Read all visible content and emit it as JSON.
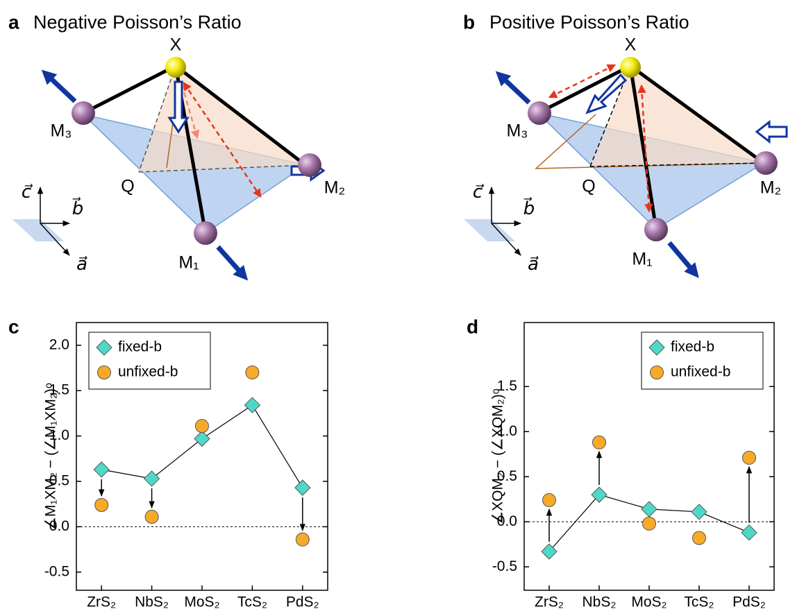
{
  "panels": [
    {
      "letter": "a",
      "title": "Negative Poisson’s Ratio",
      "atoms": [
        "X",
        "M₃",
        "M₂",
        "M₁"
      ],
      "point": "Q",
      "axes": [
        "c⃗",
        "b⃗",
        "a⃗"
      ]
    },
    {
      "letter": "b",
      "title": "Positive Poisson’s Ratio",
      "atoms": [
        "X",
        "M₃",
        "M₂",
        "M₁"
      ],
      "point": "Q",
      "axes": [
        "c⃗",
        "b⃗",
        "a⃗"
      ]
    }
  ],
  "chart_data": [
    {
      "type": "line",
      "panel_label": "c",
      "ylabel": "∠M₁XM₂ − (∠M₁XM₂)ᵒ",
      "categories": [
        "ZrS₂",
        "NbS₂",
        "MoS₂",
        "TcS₂",
        "PdS₂"
      ],
      "series": [
        {
          "name": "fixed-b",
          "color": "#4fd8c8",
          "marker": "diamond",
          "line": true,
          "values": [
            0.63,
            0.53,
            0.97,
            1.34,
            0.43
          ]
        },
        {
          "name": "unfixed-b",
          "color": "#f7a928",
          "marker": "circle",
          "line": false,
          "values": [
            0.24,
            0.11,
            1.11,
            1.7,
            -0.14
          ]
        }
      ],
      "ylim": [
        -0.7,
        2.25
      ],
      "yticks": [
        -0.5,
        {
          "value": 0,
          "label": "0.0"
        },
        0.5,
        {
          "value": 1,
          "label": "1.0"
        },
        1.5,
        {
          "value": 2,
          "label": "2.0"
        }
      ],
      "zero_line": true,
      "legend": "upper left"
    },
    {
      "type": "line",
      "panel_label": "d",
      "ylabel": "∠XQM₂ − (∠XQM₂)ᵒ",
      "categories": [
        "ZrS₂",
        "NbS₂",
        "MoS₂",
        "TcS₂",
        "PdS₂"
      ],
      "series": [
        {
          "name": "fixed-b",
          "color": "#4fd8c8",
          "marker": "diamond",
          "line": true,
          "values": [
            -0.33,
            0.3,
            0.14,
            0.11,
            -0.12
          ]
        },
        {
          "name": "unfixed-b",
          "color": "#f7a928",
          "marker": "circle",
          "line": false,
          "values": [
            0.24,
            0.88,
            -0.02,
            -0.18,
            0.71
          ]
        }
      ],
      "ylim": [
        -0.76,
        2.21
      ],
      "yticks": [
        -0.5,
        {
          "value": 0,
          "label": "0.0"
        },
        0.5,
        {
          "value": 1,
          "label": "1.0"
        },
        1.5
      ],
      "zero_line": true,
      "legend": "upper right"
    }
  ]
}
